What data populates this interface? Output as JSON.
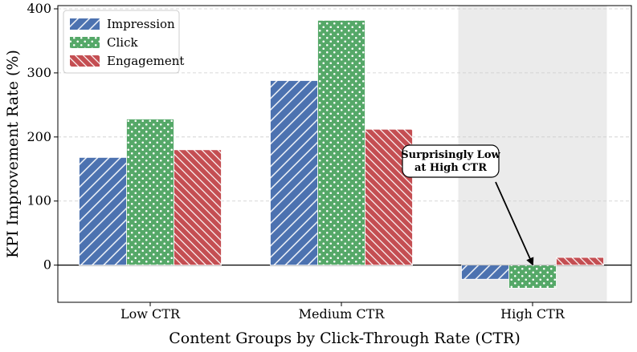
{
  "chart_data": {
    "type": "bar",
    "categories": [
      "Low CTR",
      "Medium CTR",
      "High CTR"
    ],
    "series": [
      {
        "name": "Impression",
        "values": [
          168,
          288,
          -22
        ],
        "color": "#4c72b0",
        "pattern": "diagonal-hatch"
      },
      {
        "name": "Click",
        "values": [
          228,
          382,
          -36
        ],
        "color": "#55a868",
        "pattern": "dots"
      },
      {
        "name": "Engagement",
        "values": [
          180,
          212,
          12
        ],
        "color": "#c44e52",
        "pattern": "dense-diagonal-hatch"
      }
    ],
    "title": "",
    "xlabel": "Content Groups by Click-Through Rate (CTR)",
    "ylabel": "KPI Improvement Rate (%)",
    "ylim": [
      -58,
      405
    ],
    "yticks": [
      0,
      100,
      200,
      300,
      400
    ],
    "grid": "horizontal dashed",
    "legend_position": "top-left",
    "highlighted_category": "High CTR",
    "highlight_color": "#ebebeb",
    "zero_line": true,
    "annotation": {
      "text_line1": "Surprisingly Low",
      "text_line2": "at High CTR",
      "target_category": "High CTR",
      "target_series": "Click",
      "target_value": 0
    }
  }
}
